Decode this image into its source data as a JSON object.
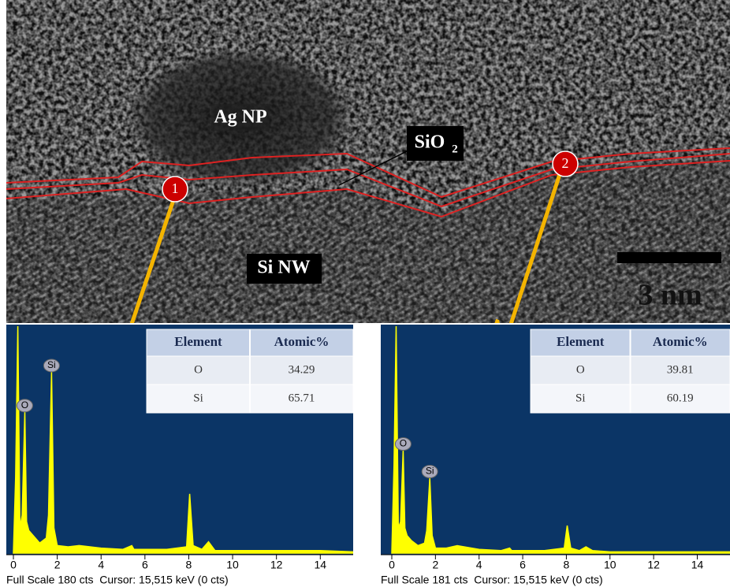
{
  "image": {
    "ag_np": "Ag NP",
    "sio2": "SiO",
    "sio2_sub": "2",
    "si_nw": "Si NW",
    "scale": "3 nm",
    "marker1": "1",
    "marker2": "2"
  },
  "chart_data": [
    {
      "type": "line",
      "x": [
        0,
        0.1,
        0.2,
        0.3,
        0.4,
        0.52,
        0.6,
        0.7,
        0.9,
        1.2,
        1.5,
        1.6,
        1.74,
        1.85,
        2.0,
        2.5,
        3,
        4,
        5,
        5.4,
        5.5,
        6,
        7,
        7.9,
        8.04,
        8.2,
        8.6,
        8.9,
        9.2,
        10,
        12,
        14,
        15.5
      ],
      "values": [
        0,
        60,
        180,
        20,
        30,
        112,
        25,
        18,
        14,
        8,
        12,
        30,
        144,
        20,
        6,
        5,
        6,
        4,
        3,
        6,
        3,
        3,
        3,
        5,
        47,
        6,
        3,
        9,
        2,
        2,
        2,
        2,
        1
      ],
      "color": "#ffff00",
      "xlim": [
        0,
        15.5
      ],
      "xticks": [
        0,
        2,
        4,
        6,
        8,
        10,
        12,
        14
      ],
      "ylim": [
        0,
        180
      ],
      "peak_labels": [
        {
          "text": "O",
          "x": 0.52
        },
        {
          "text": "Si",
          "x": 1.74
        }
      ],
      "footer": "Full Scale 180 cts  Cursor: 15,515 keV (0 cts)",
      "table": {
        "header": [
          "Element",
          "Atomic%"
        ],
        "rows": [
          [
            "O",
            "34.29"
          ],
          [
            "Si",
            "65.71"
          ]
        ]
      }
    },
    {
      "type": "line",
      "x": [
        0,
        0.1,
        0.2,
        0.3,
        0.4,
        0.52,
        0.6,
        0.7,
        0.9,
        1.2,
        1.5,
        1.6,
        1.74,
        1.85,
        2.0,
        2.5,
        3,
        4,
        5,
        5.4,
        5.5,
        6,
        7,
        7.9,
        8.04,
        8.2,
        8.6,
        8.9,
        9.2,
        10,
        12,
        14,
        15.5
      ],
      "values": [
        0,
        70,
        181,
        20,
        25,
        82,
        20,
        14,
        10,
        6,
        8,
        18,
        60,
        14,
        4,
        4,
        6,
        3,
        2,
        4,
        2,
        2,
        2,
        4,
        22,
        4,
        2,
        5,
        2,
        1,
        1,
        1,
        1
      ],
      "color": "#ffff00",
      "xlim": [
        0,
        15.5
      ],
      "xticks": [
        0,
        2,
        4,
        6,
        8,
        10,
        12,
        14
      ],
      "ylim": [
        0,
        181
      ],
      "peak_labels": [
        {
          "text": "O",
          "x": 0.52
        },
        {
          "text": "Si",
          "x": 1.74
        }
      ],
      "footer": "Full Scale 181 cts  Cursor: 15,515 keV (0 cts)",
      "table": {
        "header": [
          "Element",
          "Atomic%"
        ],
        "rows": [
          [
            "O",
            "39.81"
          ],
          [
            "Si",
            "60.19"
          ]
        ]
      }
    }
  ]
}
